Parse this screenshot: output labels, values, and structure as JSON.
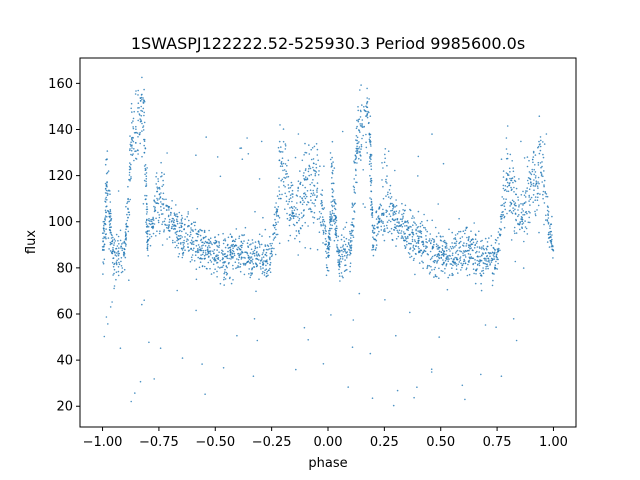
{
  "chart_data": {
    "type": "scatter",
    "title": "1SWASPJ122222.52-525930.3 Period 9985600.0s",
    "xlabel": "phase",
    "ylabel": "flux",
    "xlim": [
      -1.1,
      1.1
    ],
    "ylim": [
      11,
      171
    ],
    "x_ticks": [
      -1.0,
      -0.75,
      -0.5,
      -0.25,
      0.0,
      0.25,
      0.5,
      0.75,
      1.0
    ],
    "x_tick_labels": [
      "−1.00",
      "−0.75",
      "−0.50",
      "−0.25",
      "0.00",
      "0.25",
      "0.50",
      "0.75",
      "1.00"
    ],
    "y_ticks": [
      20,
      40,
      60,
      80,
      100,
      120,
      140,
      160
    ],
    "y_tick_labels": [
      "20",
      "40",
      "60",
      "80",
      "100",
      "120",
      "140",
      "160"
    ],
    "grid": false,
    "legend": "none",
    "marker_color": "#1f77b4",
    "description_trend": [
      {
        "phase": -1.0,
        "flux": 85
      },
      {
        "phase": -0.98,
        "flux": 115
      },
      {
        "phase": -0.95,
        "flux": 83
      },
      {
        "phase": -0.9,
        "flux": 88
      },
      {
        "phase": -0.87,
        "flux": 135
      },
      {
        "phase": -0.82,
        "flux": 150
      },
      {
        "phase": -0.8,
        "flux": 92
      },
      {
        "phase": -0.75,
        "flux": 110
      },
      {
        "phase": -0.7,
        "flux": 100
      },
      {
        "phase": -0.65,
        "flux": 95
      },
      {
        "phase": -0.6,
        "flux": 92
      },
      {
        "phase": -0.55,
        "flux": 88
      },
      {
        "phase": -0.5,
        "flux": 86
      },
      {
        "phase": -0.45,
        "flux": 85
      },
      {
        "phase": -0.4,
        "flux": 88
      },
      {
        "phase": -0.35,
        "flux": 86
      },
      {
        "phase": -0.3,
        "flux": 84
      },
      {
        "phase": -0.25,
        "flux": 86
      },
      {
        "phase": -0.2,
        "flux": 125
      },
      {
        "phase": -0.15,
        "flux": 100
      },
      {
        "phase": -0.1,
        "flux": 115
      },
      {
        "phase": -0.05,
        "flux": 120
      },
      {
        "phase": 0.0,
        "flux": 85
      },
      {
        "phase": 0.02,
        "flux": 115
      },
      {
        "phase": 0.05,
        "flux": 83
      },
      {
        "phase": 0.1,
        "flux": 88
      },
      {
        "phase": 0.13,
        "flux": 135
      },
      {
        "phase": 0.18,
        "flux": 150
      },
      {
        "phase": 0.2,
        "flux": 92
      },
      {
        "phase": 0.25,
        "flux": 110
      },
      {
        "phase": 0.3,
        "flux": 100
      },
      {
        "phase": 0.35,
        "flux": 95
      },
      {
        "phase": 0.4,
        "flux": 92
      },
      {
        "phase": 0.45,
        "flux": 88
      },
      {
        "phase": 0.5,
        "flux": 86
      },
      {
        "phase": 0.55,
        "flux": 85
      },
      {
        "phase": 0.6,
        "flux": 88
      },
      {
        "phase": 0.65,
        "flux": 86
      },
      {
        "phase": 0.7,
        "flux": 84
      },
      {
        "phase": 0.75,
        "flux": 86
      },
      {
        "phase": 0.8,
        "flux": 125
      },
      {
        "phase": 0.85,
        "flux": 100
      },
      {
        "phase": 0.9,
        "flux": 115
      },
      {
        "phase": 0.95,
        "flux": 120
      },
      {
        "phase": 1.0,
        "flux": 85
      }
    ]
  }
}
